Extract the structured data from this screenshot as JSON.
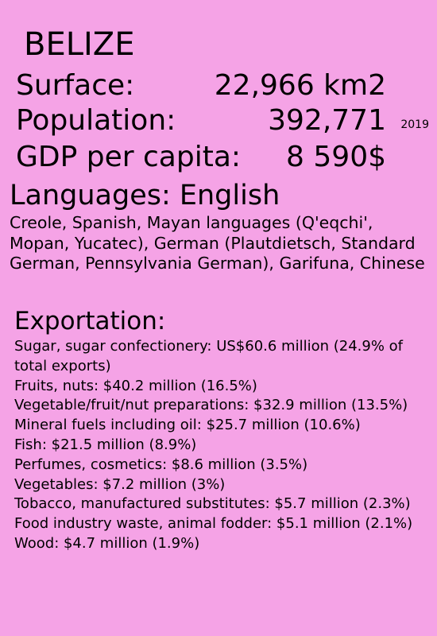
{
  "country": "BELIZE",
  "surface": {
    "label": "Surface:",
    "value": "22,966 km2"
  },
  "population": {
    "label": "Population:",
    "value": "392,771",
    "year": "2019"
  },
  "gdp": {
    "label": "GDP per capita:",
    "value": "8 590$"
  },
  "languages": {
    "heading": "Languages: English",
    "list": "Creole, Spanish, Mayan languages (Q'eqchi', Mopan, Yucatec), German (Plautdietsch, Standard German, Pennsylvania German), Garifuna, Chinese"
  },
  "exports": {
    "heading": "Exportation:",
    "items": [
      "Sugar, sugar confectionery: US$60.6 million (24.9% of total exports)",
      "Fruits, nuts: $40.2 million (16.5%)",
      "Vegetable/fruit/nut preparations: $32.9 million (13.5%)",
      "Mineral fuels including oil: $25.7 million (10.6%)",
      "Fish: $21.5 million (8.9%)",
      "Perfumes, cosmetics: $8.6 million (3.5%)",
      "Vegetables: $7.2 million (3%)",
      "Tobacco, manufactured substitutes: $5.7 million (2.3%)",
      "Food industry waste, animal fodder: $5.1 million (2.1%)",
      "Wood: $4.7 million (1.9%)"
    ]
  }
}
